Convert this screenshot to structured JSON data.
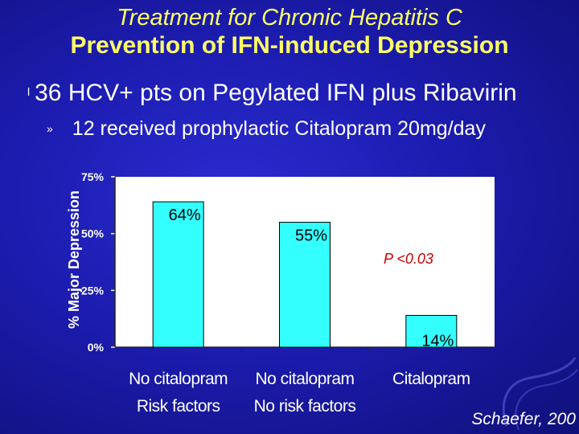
{
  "slide": {
    "title_line1": "Treatment for Chronic Hepatitis C",
    "title_line2": "Prevention of IFN-induced Depression",
    "bullet_main_marker": "l",
    "bullet_main": "36 HCV+ pts on Pegylated IFN plus Ribavirin",
    "bullet_sub_marker": "»",
    "bullet_sub": "12 received prophylactic Citalopram 20mg/day",
    "citation": "Schaefer, 200",
    "colors": {
      "background": "#1c1cb0",
      "title": "#ffff66",
      "bar_fill": "#33ffff",
      "annotation": "#cc0000",
      "plot_background": "#ffffff"
    }
  },
  "chart_data": {
    "type": "bar",
    "categories": [
      [
        "No citalopram",
        "Risk factors"
      ],
      [
        "No citalopram",
        "No risk factors"
      ],
      [
        "Citalopram"
      ]
    ],
    "values": [
      64,
      55,
      14
    ],
    "data_labels": [
      "64%",
      "55%",
      "14%"
    ],
    "ylabel": "% Major Depression",
    "ylim": [
      0,
      75
    ],
    "yticks": [
      0,
      25,
      50,
      75
    ],
    "ytick_labels": [
      "0%",
      "25%",
      "50%",
      "75%"
    ],
    "annotation": "P <0.03",
    "grid": false,
    "legend": "none"
  }
}
